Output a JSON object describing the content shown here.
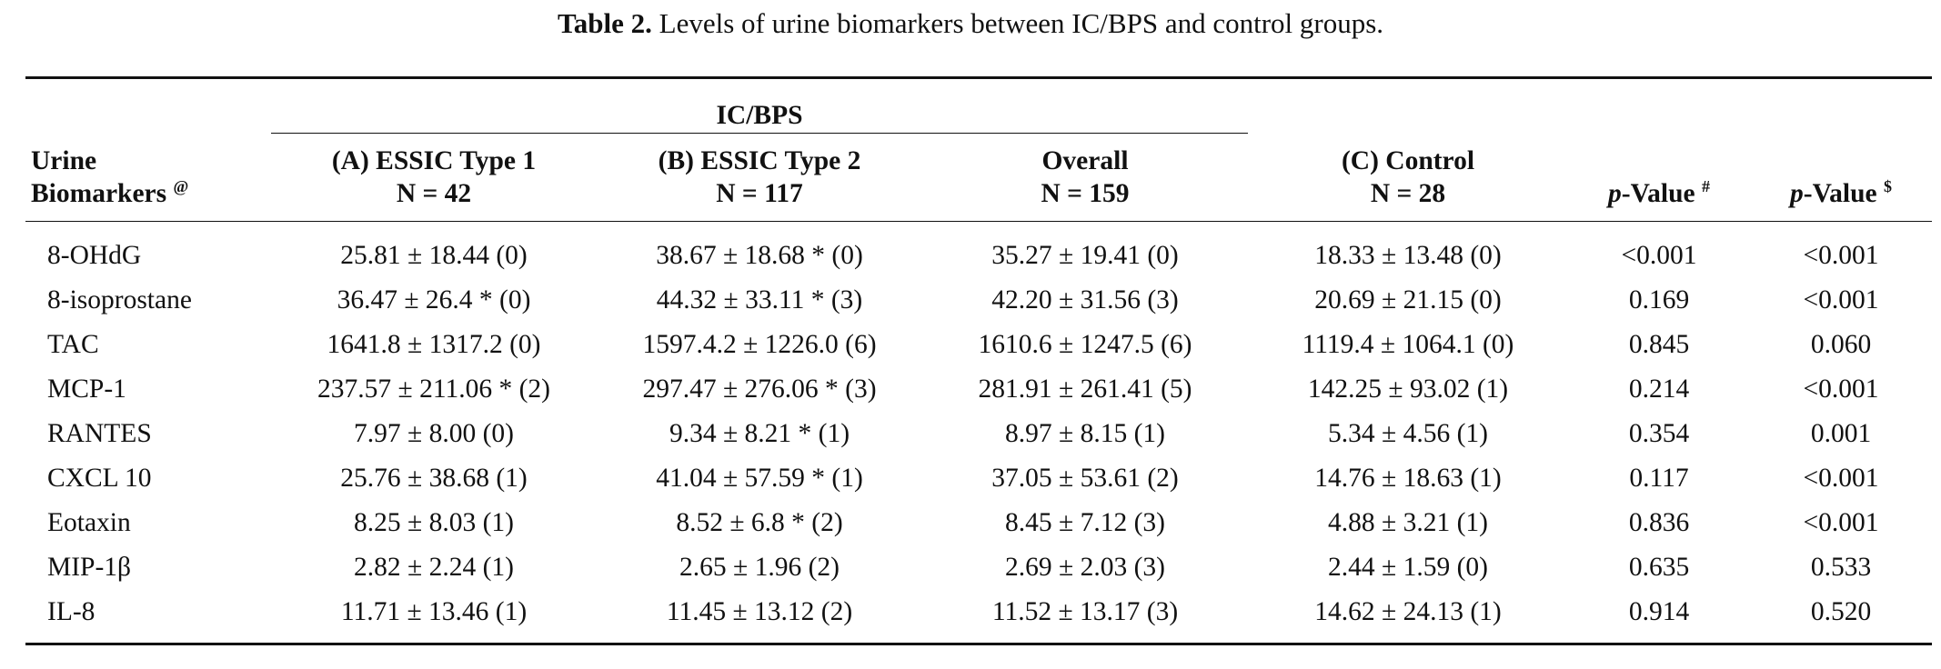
{
  "caption": {
    "label": "Table 2.",
    "text": "Levels of urine biomarkers between IC/BPS and control groups."
  },
  "header": {
    "group_label": "IC/BPS",
    "col_biomarker_line1": "Urine",
    "col_biomarker_line2": "Biomarkers",
    "col_biomarker_sup": "@",
    "col_a_line1": "(A) ESSIC Type 1",
    "col_a_line2": "N = 42",
    "col_b_line1": "(B) ESSIC Type 2",
    "col_b_line2": "N = 117",
    "col_overall_line1": "Overall",
    "col_overall_line2": "N = 159",
    "col_c_line1": "(C) Control",
    "col_c_line2": "N = 28",
    "pval1_italic": "p",
    "pval1_text": "-Value",
    "pval1_sup": "#",
    "pval2_italic": "p",
    "pval2_text": "-Value",
    "pval2_sup": "$"
  },
  "rows": [
    {
      "name": "8-OHdG",
      "a": "25.81 ± 18.44 (0)",
      "b": "38.67 ± 18.68 * (0)",
      "overall": "35.27 ± 19.41 (0)",
      "c": "18.33 ± 13.48 (0)",
      "p1": "<0.001",
      "p2": "<0.001"
    },
    {
      "name": "8-isoprostane",
      "a": "36.47 ± 26.4 * (0)",
      "b": "44.32 ± 33.11 * (3)",
      "overall": "42.20 ± 31.56 (3)",
      "c": "20.69 ± 21.15 (0)",
      "p1": "0.169",
      "p2": "<0.001"
    },
    {
      "name": "TAC",
      "a": "1641.8 ± 1317.2 (0)",
      "b": "1597.4.2 ± 1226.0 (6)",
      "overall": "1610.6 ± 1247.5 (6)",
      "c": "1119.4 ± 1064.1 (0)",
      "p1": "0.845",
      "p2": "0.060"
    },
    {
      "name": "MCP-1",
      "a": "237.57 ± 211.06 * (2)",
      "b": "297.47 ± 276.06 * (3)",
      "overall": "281.91 ± 261.41 (5)",
      "c": "142.25 ± 93.02 (1)",
      "p1": "0.214",
      "p2": "<0.001"
    },
    {
      "name": "RANTES",
      "a": "7.97 ± 8.00 (0)",
      "b": "9.34 ± 8.21 * (1)",
      "overall": "8.97 ± 8.15 (1)",
      "c": "5.34 ± 4.56 (1)",
      "p1": "0.354",
      "p2": "0.001"
    },
    {
      "name": "CXCL 10",
      "a": "25.76 ± 38.68 (1)",
      "b": "41.04 ± 57.59 * (1)",
      "overall": "37.05 ± 53.61 (2)",
      "c": "14.76 ± 18.63 (1)",
      "p1": "0.117",
      "p2": "<0.001"
    },
    {
      "name": "Eotaxin",
      "a": "8.25 ± 8.03 (1)",
      "b": "8.52 ± 6.8 * (2)",
      "overall": "8.45 ± 7.12 (3)",
      "c": "4.88 ± 3.21 (1)",
      "p1": "0.836",
      "p2": "<0.001"
    },
    {
      "name": "MIP-1β",
      "a": "2.82 ± 2.24 (1)",
      "b": "2.65 ± 1.96 (2)",
      "overall": "2.69 ± 2.03 (3)",
      "c": "2.44 ± 1.59 (0)",
      "p1": "0.635",
      "p2": "0.533"
    },
    {
      "name": "IL-8",
      "a": "11.71 ± 13.46 (1)",
      "b": "11.45 ± 13.12 (2)",
      "overall": "11.52 ± 13.17 (3)",
      "c": "14.62 ± 24.13 (1)",
      "p1": "0.914",
      "p2": "0.520"
    }
  ]
}
